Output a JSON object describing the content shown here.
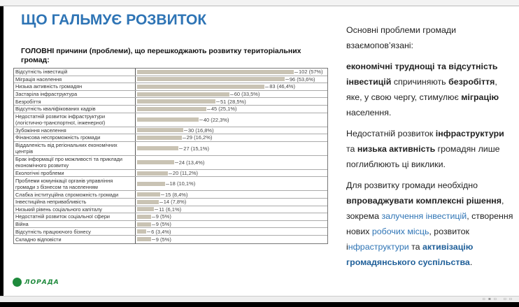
{
  "slide": {
    "title": "ЩО ГАЛЬМУЄ РОЗВИТОК",
    "subtitle": "ГОЛОВНІ причини (проблеми), що перешкоджають розвитку територіальних громад:",
    "logo_text": "ЛОРАДА"
  },
  "chart_data": {
    "type": "bar",
    "orientation": "horizontal",
    "title": "ГОЛОВНІ причини (проблеми), що перешкоджають розвитку територіальних громад:",
    "xlim": [
      0,
      102
    ],
    "categories": [
      "Відсутність інвестицій",
      "Міграція населення",
      "Низька активність громадян",
      "Застаріла інфраструктура",
      "Безробіття",
      "Відсутність кваліфікованих кадрів",
      "Недостатній розвиток інфраструктури (логістично-транспортної, інженерної)",
      "Зубожіння населення",
      "Фінансова неспроможність громади",
      "Віддаленість від регіональних економічних центрів",
      "Брак інформації про можливості та приклади економічного розвитку",
      "Екологічні проблеми",
      "Проблеми комунікації органів управління громади з бізнесом та населенням",
      "Слабка інституційна спроможність громади",
      "Інвестиційна непривабливість",
      "Низький рівень соціального капіталу",
      "Недостатній розвиток соціальної сфери",
      "Війна",
      "Відсутність працюючого бізнесу",
      "Складно відповісти"
    ],
    "values": [
      102,
      96,
      83,
      60,
      51,
      45,
      40,
      30,
      29,
      27,
      24,
      20,
      18,
      15,
      14,
      11,
      9,
      9,
      6,
      9
    ],
    "labels": [
      "102 (57%)",
      "96 (53,6%)",
      "83 (46,4%)",
      "60 (33,5%)",
      "51 (28,5%)",
      "45 (25,1%)",
      "40 (22,3%)",
      "30 (16,8%)",
      "29 (16,2%)",
      "27 (15,1%)",
      "24 (13,4%)",
      "20 (11,2%)",
      "18 (10,1%)",
      "15 (8,4%)",
      "14 (7,8%)",
      "11 (6,1%)",
      "9 (5%)",
      "9 (5%)",
      "6 (3,4%)",
      "9 (5%)"
    ],
    "bar_color": "#c9c3b4"
  },
  "right_text": [
    [
      {
        "t": "Основні проблеми громади взаємопов’язані:",
        "s": ""
      }
    ],
    [
      {
        "t": "економічні труднощі та відсутність інвестицій",
        "s": "b"
      },
      {
        "t": " спричиняють ",
        "s": ""
      },
      {
        "t": "безробіття",
        "s": "b"
      },
      {
        "t": ", яке, у свою чергу, стимулює ",
        "s": ""
      },
      {
        "t": "міграцію",
        "s": "b"
      },
      {
        "t": " населення.",
        "s": ""
      }
    ],
    [
      {
        "t": "Недостатній розвиток ",
        "s": ""
      },
      {
        "t": "інфраструктури",
        "s": "b"
      },
      {
        "t": " та ",
        "s": ""
      },
      {
        "t": "низька активність",
        "s": "b"
      },
      {
        "t": " громадян лише поглиблюють ці виклики.",
        "s": ""
      }
    ],
    [
      {
        "t": "Для розвитку громади необхідно ",
        "s": ""
      },
      {
        "t": "впроваджувати комплексні рішення",
        "s": "b"
      },
      {
        "t": ", зокрема ",
        "s": ""
      },
      {
        "t": "залучення інвестицій",
        "s": "c"
      },
      {
        "t": ", створення нових ",
        "s": ""
      },
      {
        "t": "робочих місць",
        "s": "c"
      },
      {
        "t": ", розвиток і",
        "s": ""
      },
      {
        "t": "нфраструктури",
        "s": "c"
      },
      {
        "t": " та ",
        "s": ""
      },
      {
        "t": "активізацію громадянського суспільства",
        "s": "cb"
      },
      {
        "t": ".",
        "s": ""
      }
    ]
  ]
}
